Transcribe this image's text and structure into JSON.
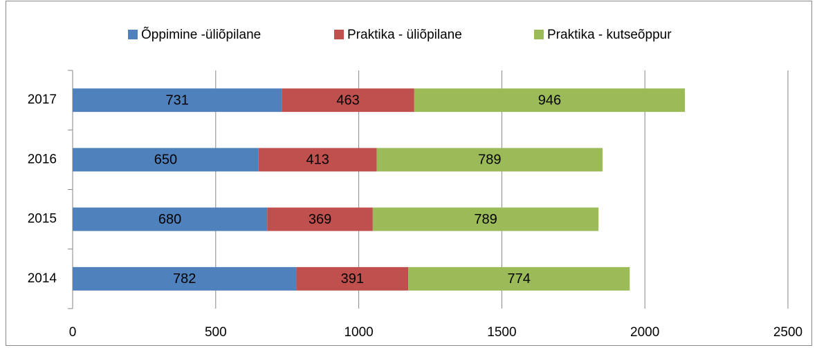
{
  "chart_data": {
    "type": "stacked-bar-horizontal",
    "categories": [
      "2014",
      "2015",
      "2016",
      "2017"
    ],
    "series": [
      {
        "name": "Õppimine -üliõpilane",
        "color": "#4f81bd",
        "values": [
          782,
          680,
          650,
          731
        ]
      },
      {
        "name": "Praktika - üliõpilane",
        "color": "#c0504d",
        "values": [
          391,
          369,
          413,
          463
        ]
      },
      {
        "name": "Praktika - kutseõppur",
        "color": "#9bbb59",
        "values": [
          774,
          789,
          789,
          946
        ]
      }
    ],
    "xlim": [
      0,
      2500
    ],
    "xticks": [
      0,
      500,
      1000,
      1500,
      2000,
      2500
    ],
    "grid": true,
    "legend": "top"
  }
}
